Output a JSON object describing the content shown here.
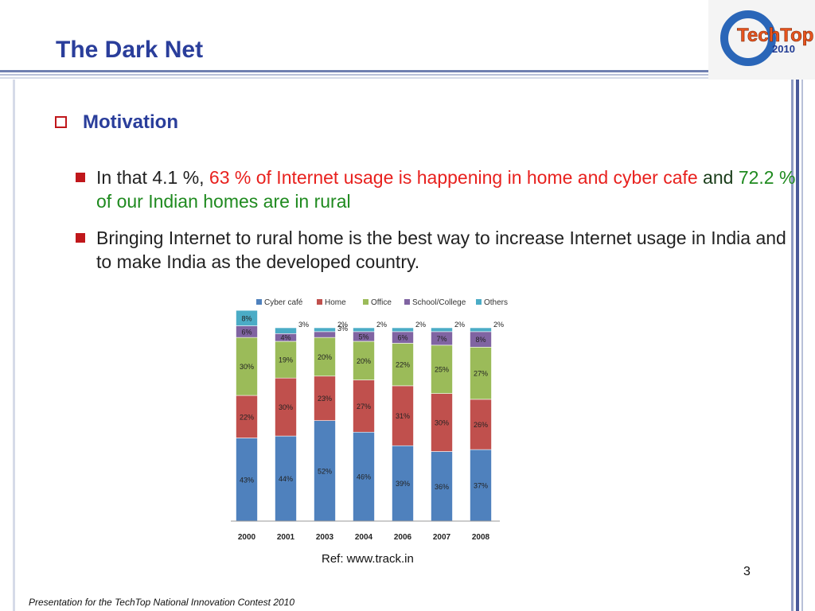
{
  "title": "The Dark Net",
  "logo": {
    "name": "TechTop",
    "year": "2010"
  },
  "heading": "Motivation",
  "bullets": [
    {
      "parts": [
        {
          "text": "In that 4.1 %, ",
          "color": "#222222"
        },
        {
          "text": "63 % of Internet usage is happening in home and cyber cafe",
          "color": "#e8211e"
        },
        {
          "text": " and ",
          "color": "#1a3d1a"
        },
        {
          "text": "72.2 % of our Indian homes are in rural",
          "color": "#1f8a1f"
        }
      ]
    },
    {
      "parts": [
        {
          "text": "Bringing Internet to rural home is the best way to increase Internet usage in India and to make India as the developed country.",
          "color": "#222222"
        }
      ]
    }
  ],
  "chart_data": {
    "type": "stacked_bar",
    "categories": [
      "2000",
      "2001",
      "2003",
      "2004",
      "2006",
      "2007",
      "2008"
    ],
    "series": [
      {
        "name": "Cyber café",
        "color": "#4f81bd",
        "values": [
          43,
          44,
          52,
          46,
          39,
          36,
          37
        ],
        "value_labels": [
          "43%",
          "44%",
          "52%",
          "46%",
          "39%",
          "36%",
          "37%"
        ]
      },
      {
        "name": "Home",
        "color": "#c0504d",
        "values": [
          22,
          30,
          23,
          27,
          31,
          30,
          26
        ],
        "value_labels": [
          "22%",
          "30%",
          "23%",
          "27%",
          "31%",
          "30%",
          "26%"
        ]
      },
      {
        "name": "Office",
        "color": "#9bbb59",
        "values": [
          30,
          19,
          20,
          20,
          22,
          25,
          27
        ],
        "value_labels": [
          "30%",
          "19%",
          "20%",
          "20%",
          "22%",
          "25%",
          "27%"
        ]
      },
      {
        "name": "School/College",
        "color": "#8064a2",
        "values": [
          6,
          4,
          3,
          5,
          6,
          7,
          8
        ],
        "value_labels": [
          "6%",
          "4%",
          "3%",
          "5%",
          "6%",
          "7%",
          "8%"
        ]
      },
      {
        "name": "Others",
        "color": "#4bacc6",
        "values": [
          8,
          3,
          2,
          2,
          2,
          2,
          2
        ],
        "value_labels": [
          "8%",
          "3%",
          "2%",
          "2%",
          "2%",
          "2%",
          "2%"
        ]
      }
    ]
  },
  "reference": "Ref: www.track.in",
  "page_number": "3",
  "footer": "Presentation for the TechTop National  Innovation Contest  2010"
}
